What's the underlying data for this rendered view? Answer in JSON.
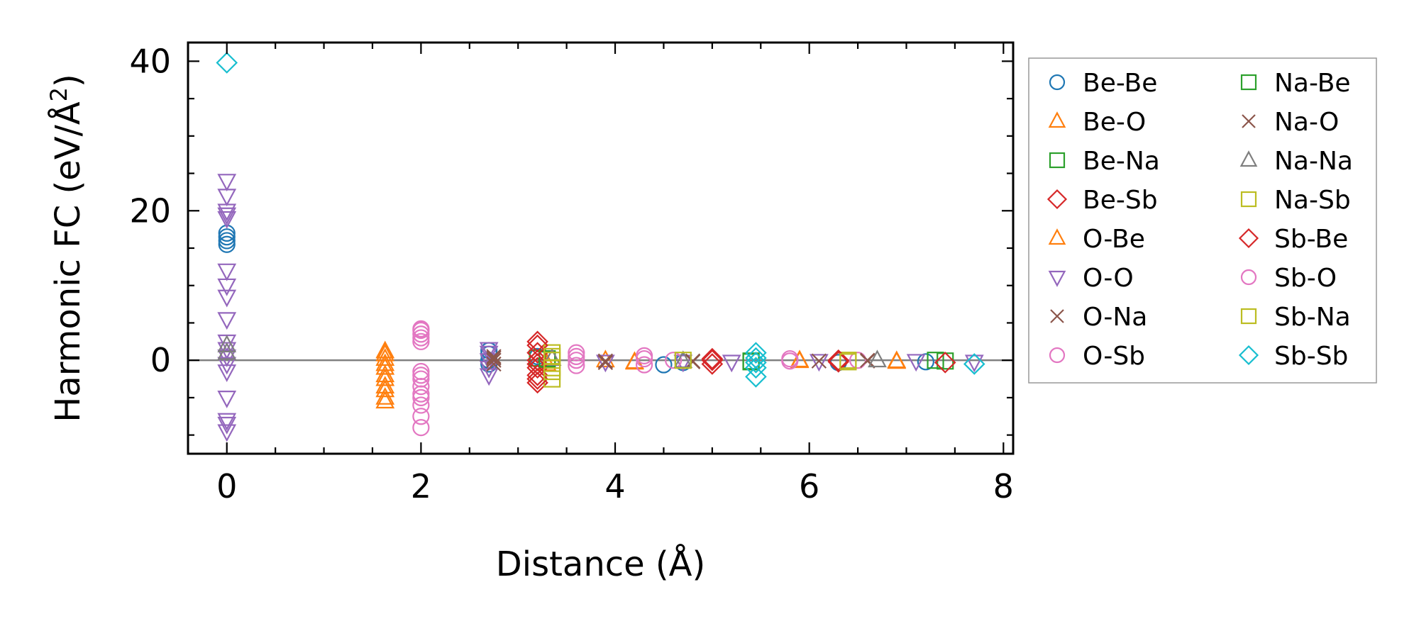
{
  "chart_data": {
    "type": "scatter",
    "title": "",
    "xlabel": "Distance (Å)",
    "ylabel": "Harmonic FC (eV/Å²)",
    "ylabel_parts": {
      "main": "Harmonic FC (eV/Å",
      "sup": "2",
      "end": ")"
    },
    "xlim": [
      -0.4,
      8.1
    ],
    "ylim": [
      -12.5,
      42.5
    ],
    "xticks": [
      0,
      2,
      4,
      6,
      8
    ],
    "yticks": [
      0,
      20,
      40
    ],
    "zero_line": true,
    "grid": false,
    "legend": {
      "location": "outside-right",
      "columns": 2
    },
    "series": [
      {
        "name": "Be-Be",
        "marker": "circle",
        "color": "#1f77b4",
        "points": [
          [
            0,
            17
          ],
          [
            0,
            16.5
          ],
          [
            0,
            16
          ],
          [
            0,
            15.5
          ],
          [
            2.7,
            1.3
          ],
          [
            2.7,
            0.8
          ],
          [
            2.7,
            0
          ],
          [
            2.7,
            -0.5
          ],
          [
            3.2,
            0.5
          ],
          [
            4.5,
            -0.6
          ],
          [
            4.7,
            -0.3
          ],
          [
            6.3,
            -0.3
          ],
          [
            7.2,
            -0.2
          ]
        ]
      },
      {
        "name": "Be-O",
        "marker": "triangle-up",
        "color": "#ff7f0e",
        "points": [
          [
            1.63,
            1.2
          ],
          [
            1.63,
            0.2
          ],
          [
            1.63,
            -1
          ],
          [
            1.63,
            -2.5
          ],
          [
            1.63,
            -4
          ],
          [
            1.63,
            -5.5
          ],
          [
            3.3,
            -0.5
          ],
          [
            4.2,
            -0.2
          ],
          [
            5.9,
            -0.1
          ],
          [
            6.9,
            -0.2
          ]
        ]
      },
      {
        "name": "Be-Na",
        "marker": "square",
        "color": "#2ca02c",
        "points": [
          [
            3.2,
            0.3
          ],
          [
            3.3,
            0.1
          ],
          [
            5.4,
            -0.2
          ],
          [
            7.4,
            -0.1
          ]
        ]
      },
      {
        "name": "Be-Sb",
        "marker": "diamond",
        "color": "#d62728",
        "points": [
          [
            3.2,
            2.5
          ],
          [
            3.2,
            1
          ],
          [
            3.2,
            0
          ],
          [
            3.2,
            -1
          ],
          [
            3.2,
            -2
          ],
          [
            3.2,
            -3
          ],
          [
            5.0,
            0
          ],
          [
            5.0,
            -0.5
          ],
          [
            6.3,
            -0.2
          ]
        ]
      },
      {
        "name": "O-Be",
        "marker": "triangle-up",
        "color": "#ff7f0e",
        "points": [
          [
            1.63,
            0.8
          ],
          [
            1.63,
            -0.5
          ],
          [
            1.63,
            -2
          ],
          [
            1.63,
            -3.5
          ],
          [
            1.63,
            -5
          ],
          [
            3.9,
            0
          ],
          [
            4.2,
            -0.3
          ],
          [
            5.9,
            0
          ],
          [
            6.9,
            -0.1
          ]
        ]
      },
      {
        "name": "O-O",
        "marker": "triangle-down",
        "color": "#9467bd",
        "points": [
          [
            0,
            24
          ],
          [
            0,
            22
          ],
          [
            0,
            20
          ],
          [
            0,
            19.5
          ],
          [
            0,
            19
          ],
          [
            0,
            12
          ],
          [
            0,
            10
          ],
          [
            0,
            8.5
          ],
          [
            0,
            5.5
          ],
          [
            0,
            2.5
          ],
          [
            0,
            1.5
          ],
          [
            0,
            0.5
          ],
          [
            0,
            -0.5
          ],
          [
            0,
            -1.5
          ],
          [
            0,
            -5
          ],
          [
            0,
            -8
          ],
          [
            0,
            -8.5
          ],
          [
            0,
            -9.5
          ],
          [
            2.7,
            1.5
          ],
          [
            2.7,
            1
          ],
          [
            2.7,
            0
          ],
          [
            2.7,
            -1
          ],
          [
            2.7,
            -2
          ],
          [
            3.9,
            -0.2
          ],
          [
            4.7,
            -0.2
          ],
          [
            5.2,
            -0.2
          ],
          [
            6.1,
            -0.1
          ],
          [
            7.1,
            -0.1
          ],
          [
            7.7,
            -0.2
          ]
        ]
      },
      {
        "name": "O-Na",
        "marker": "x",
        "color": "#8c564b",
        "points": [
          [
            2.75,
            0.5
          ],
          [
            2.75,
            0
          ],
          [
            2.75,
            -0.5
          ],
          [
            3.9,
            -0.3
          ],
          [
            4.8,
            -0.2
          ],
          [
            6.1,
            -0.1
          ],
          [
            6.6,
            -0.1
          ]
        ]
      },
      {
        "name": "O-Sb",
        "marker": "circle",
        "color": "#e377c2",
        "points": [
          [
            2.0,
            4.2
          ],
          [
            2.0,
            3.5
          ],
          [
            2.0,
            3
          ],
          [
            2.0,
            2.5
          ],
          [
            2.0,
            -1.5
          ],
          [
            2.0,
            -2.5
          ],
          [
            2.0,
            -3.5
          ],
          [
            2.0,
            -4.5
          ],
          [
            2.0,
            -6
          ],
          [
            2.0,
            -7.5
          ],
          [
            2.0,
            -9
          ],
          [
            3.6,
            1
          ],
          [
            3.6,
            0
          ],
          [
            3.6,
            -0.7
          ],
          [
            4.3,
            0.6
          ],
          [
            4.3,
            -0.6
          ],
          [
            4.6,
            0
          ],
          [
            5.8,
            0.2
          ],
          [
            6.5,
            0
          ]
        ]
      },
      {
        "name": "Na-Be",
        "marker": "square",
        "color": "#2ca02c",
        "points": [
          [
            3.3,
            0.2
          ],
          [
            5.4,
            -0.1
          ],
          [
            7.3,
            0
          ]
        ]
      },
      {
        "name": "Na-O",
        "marker": "x",
        "color": "#8c564b",
        "points": [
          [
            2.75,
            0.3
          ],
          [
            3.9,
            -0.1
          ],
          [
            4.8,
            -0.1
          ],
          [
            6.6,
            0
          ]
        ]
      },
      {
        "name": "Na-Na",
        "marker": "triangle-up",
        "color": "#7f7f7f",
        "points": [
          [
            0,
            2
          ],
          [
            0,
            1
          ],
          [
            3.35,
            0.2
          ],
          [
            4.7,
            -0.1
          ],
          [
            6.7,
            0
          ]
        ]
      },
      {
        "name": "Na-Sb",
        "marker": "square",
        "color": "#bcbd22",
        "points": [
          [
            3.35,
            1
          ],
          [
            3.35,
            0
          ],
          [
            3.35,
            -1
          ],
          [
            3.35,
            -2.5
          ],
          [
            4.7,
            0
          ],
          [
            6.4,
            0
          ]
        ]
      },
      {
        "name": "Sb-Be",
        "marker": "diamond",
        "color": "#d62728",
        "points": [
          [
            3.2,
            2
          ],
          [
            3.2,
            -0.5
          ],
          [
            3.2,
            -2.5
          ],
          [
            5.0,
            0.2
          ],
          [
            6.3,
            0
          ],
          [
            7.4,
            -0.3
          ]
        ]
      },
      {
        "name": "Sb-O",
        "marker": "circle",
        "color": "#e377c2",
        "points": [
          [
            2.0,
            4
          ],
          [
            2.0,
            -2
          ],
          [
            2.0,
            -5
          ],
          [
            3.6,
            0.5
          ],
          [
            4.3,
            0.2
          ],
          [
            5.8,
            -0.1
          ]
        ]
      },
      {
        "name": "Sb-Na",
        "marker": "square",
        "color": "#bcbd22",
        "points": [
          [
            3.35,
            0.5
          ],
          [
            3.35,
            -1.5
          ],
          [
            6.4,
            -0.2
          ]
        ]
      },
      {
        "name": "Sb-Sb",
        "marker": "diamond",
        "color": "#17becf",
        "points": [
          [
            0,
            39.8
          ],
          [
            5.45,
            1
          ],
          [
            5.45,
            0.3
          ],
          [
            5.45,
            -0.3
          ],
          [
            5.45,
            -1
          ],
          [
            5.45,
            -2.2
          ],
          [
            7.7,
            -0.5
          ]
        ]
      }
    ]
  }
}
